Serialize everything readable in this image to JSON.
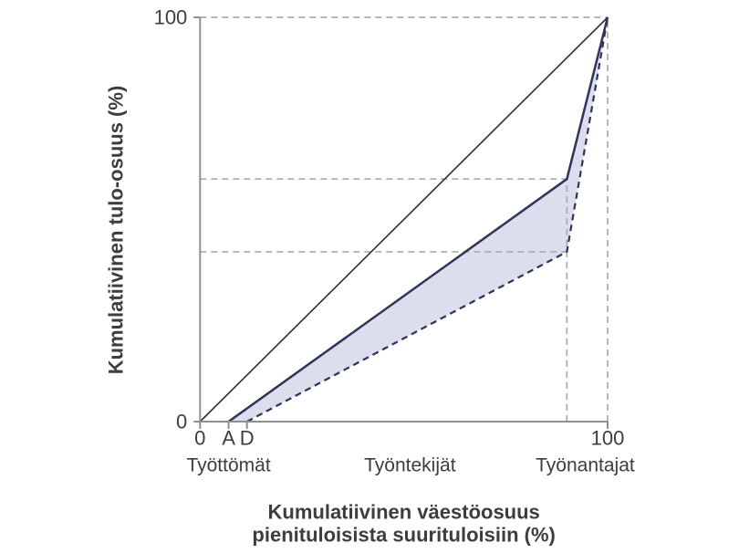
{
  "chart_data": {
    "type": "line",
    "title": "",
    "ylabel": "Kumulatiivinen tulo-osuus (%)",
    "xlabel_lines": [
      "Kumulatiivinen väestöosuus",
      "pienituloisista suurituloisiin (%)"
    ],
    "xlim": [
      0,
      100
    ],
    "ylim": [
      0,
      100
    ],
    "grid": "dashed-guides-only",
    "legend": "none",
    "series": [
      {
        "name": "perfect-equality-line",
        "style": "solid",
        "color": "#2f2f2f",
        "width": 1.6,
        "points": [
          [
            0,
            0
          ],
          [
            100,
            100
          ]
        ]
      },
      {
        "name": "lorenz-curve-original-solid",
        "style": "solid",
        "color": "#303459",
        "width": 2.5,
        "points": [
          [
            7,
            0
          ],
          [
            90,
            60
          ],
          [
            100,
            100
          ]
        ]
      },
      {
        "name": "lorenz-curve-new-dashed",
        "style": "dashed",
        "color": "#303459",
        "width": 2.2,
        "points": [
          [
            11.5,
            0
          ],
          [
            90,
            42
          ],
          [
            100,
            100
          ]
        ]
      }
    ],
    "shaded_region": {
      "name": "area-between-lorenz-curves",
      "color": "#dcdeee",
      "between": [
        "lorenz-curve-original-solid",
        "lorenz-curve-new-dashed"
      ]
    },
    "gridlines": [
      {
        "type": "h",
        "y": 100,
        "x0": 0,
        "x1": 100
      },
      {
        "type": "h",
        "y": 60,
        "x0": 0,
        "x1": 90
      },
      {
        "type": "h",
        "y": 42,
        "x0": 0,
        "x1": 90
      },
      {
        "type": "v",
        "x": 90,
        "y0": 0,
        "y1": 60
      },
      {
        "type": "v",
        "x": 100,
        "y0": 0,
        "y1": 100
      }
    ],
    "xticks": [
      {
        "label": "0",
        "x": 0
      },
      {
        "label": "A",
        "x": 7
      },
      {
        "label": "D",
        "x": 11.5
      },
      {
        "label": "100",
        "x": 100
      }
    ],
    "yticks": [
      {
        "label": "0",
        "y": 0
      },
      {
        "label": "100",
        "y": 100
      }
    ],
    "category_labels": [
      {
        "label": "Työttömät",
        "x": 7
      },
      {
        "label": "Työntekijät",
        "x": 51.5
      },
      {
        "label": "Työnantajat",
        "x": 94.5
      }
    ],
    "colors": {
      "curve": "#303459",
      "shade": "#dcdeee",
      "equality": "#2f2f2f",
      "grid": "#ababab",
      "axis": "#8f8f8f",
      "text": "#3d3d3d"
    }
  }
}
